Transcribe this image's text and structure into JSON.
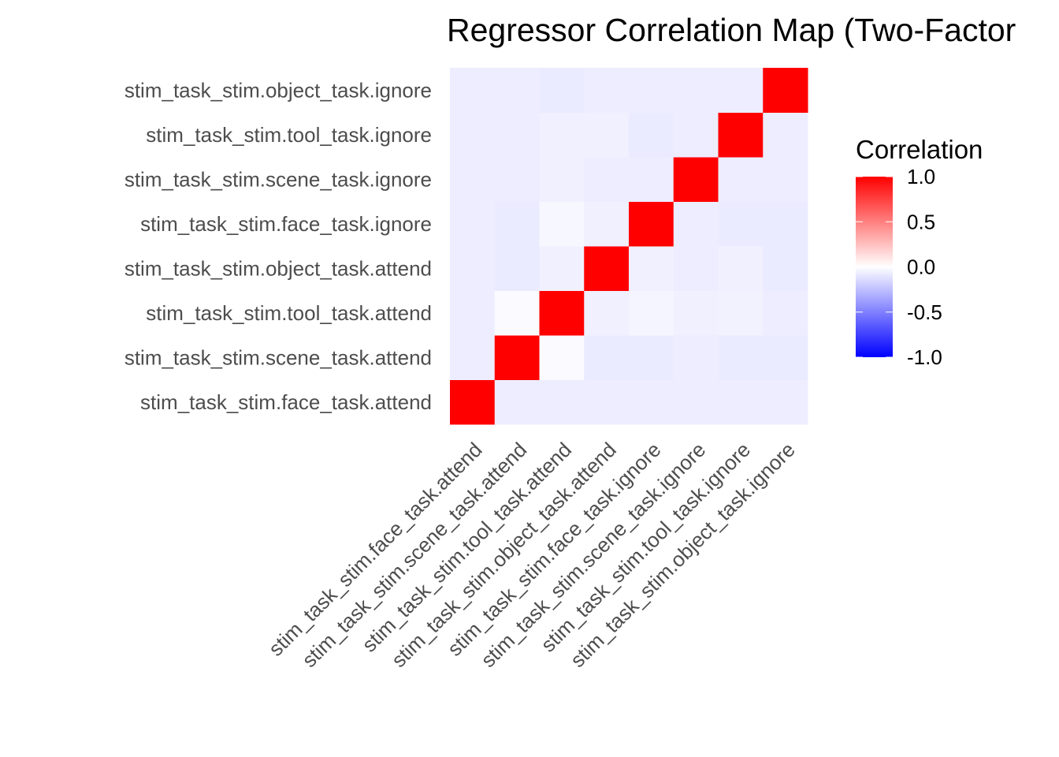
{
  "chart_data": {
    "type": "heatmap",
    "title": "Regressor Correlation Map (Two-Factor",
    "x_categories": [
      "stim_task_stim.face_task.attend",
      "stim_task_stim.scene_task.attend",
      "stim_task_stim.tool_task.attend",
      "stim_task_stim.object_task.attend",
      "stim_task_stim.face_task.ignore",
      "stim_task_stim.scene_task.ignore",
      "stim_task_stim.tool_task.ignore",
      "stim_task_stim.object_task.ignore"
    ],
    "y_categories": [
      "stim_task_stim.face_task.attend",
      "stim_task_stim.scene_task.attend",
      "stim_task_stim.tool_task.attend",
      "stim_task_stim.object_task.attend",
      "stim_task_stim.face_task.ignore",
      "stim_task_stim.scene_task.ignore",
      "stim_task_stim.tool_task.ignore",
      "stim_task_stim.object_task.ignore"
    ],
    "values": [
      [
        1.0,
        -0.07,
        -0.07,
        -0.07,
        -0.07,
        -0.07,
        -0.07,
        -0.07
      ],
      [
        -0.07,
        1.0,
        -0.02,
        -0.08,
        -0.08,
        -0.07,
        -0.08,
        -0.08
      ],
      [
        -0.07,
        -0.02,
        1.0,
        -0.06,
        -0.04,
        -0.06,
        -0.05,
        -0.07
      ],
      [
        -0.07,
        -0.08,
        -0.06,
        1.0,
        -0.06,
        -0.07,
        -0.06,
        -0.08
      ],
      [
        -0.07,
        -0.08,
        -0.03,
        -0.06,
        1.0,
        -0.07,
        -0.08,
        -0.08
      ],
      [
        -0.07,
        -0.07,
        -0.06,
        -0.07,
        -0.07,
        1.0,
        -0.07,
        -0.07
      ],
      [
        -0.07,
        -0.07,
        -0.06,
        -0.06,
        -0.08,
        -0.07,
        1.0,
        -0.07
      ],
      [
        -0.07,
        -0.07,
        -0.08,
        -0.07,
        -0.07,
        -0.07,
        -0.07,
        1.0
      ]
    ],
    "color_scale": {
      "low": "#0000ff",
      "mid": "#ffffff",
      "high": "#ff0000",
      "limits": [
        -1.0,
        1.0
      ]
    },
    "legend": {
      "title": "Correlation",
      "position": "right",
      "breaks": [
        1.0,
        0.5,
        0.0,
        -0.5,
        -1.0
      ],
      "labels": [
        "1.0",
        "0.5",
        "0.0",
        "-0.5",
        "-1.0"
      ]
    },
    "xlabel": "",
    "ylabel": "",
    "grid": false
  }
}
